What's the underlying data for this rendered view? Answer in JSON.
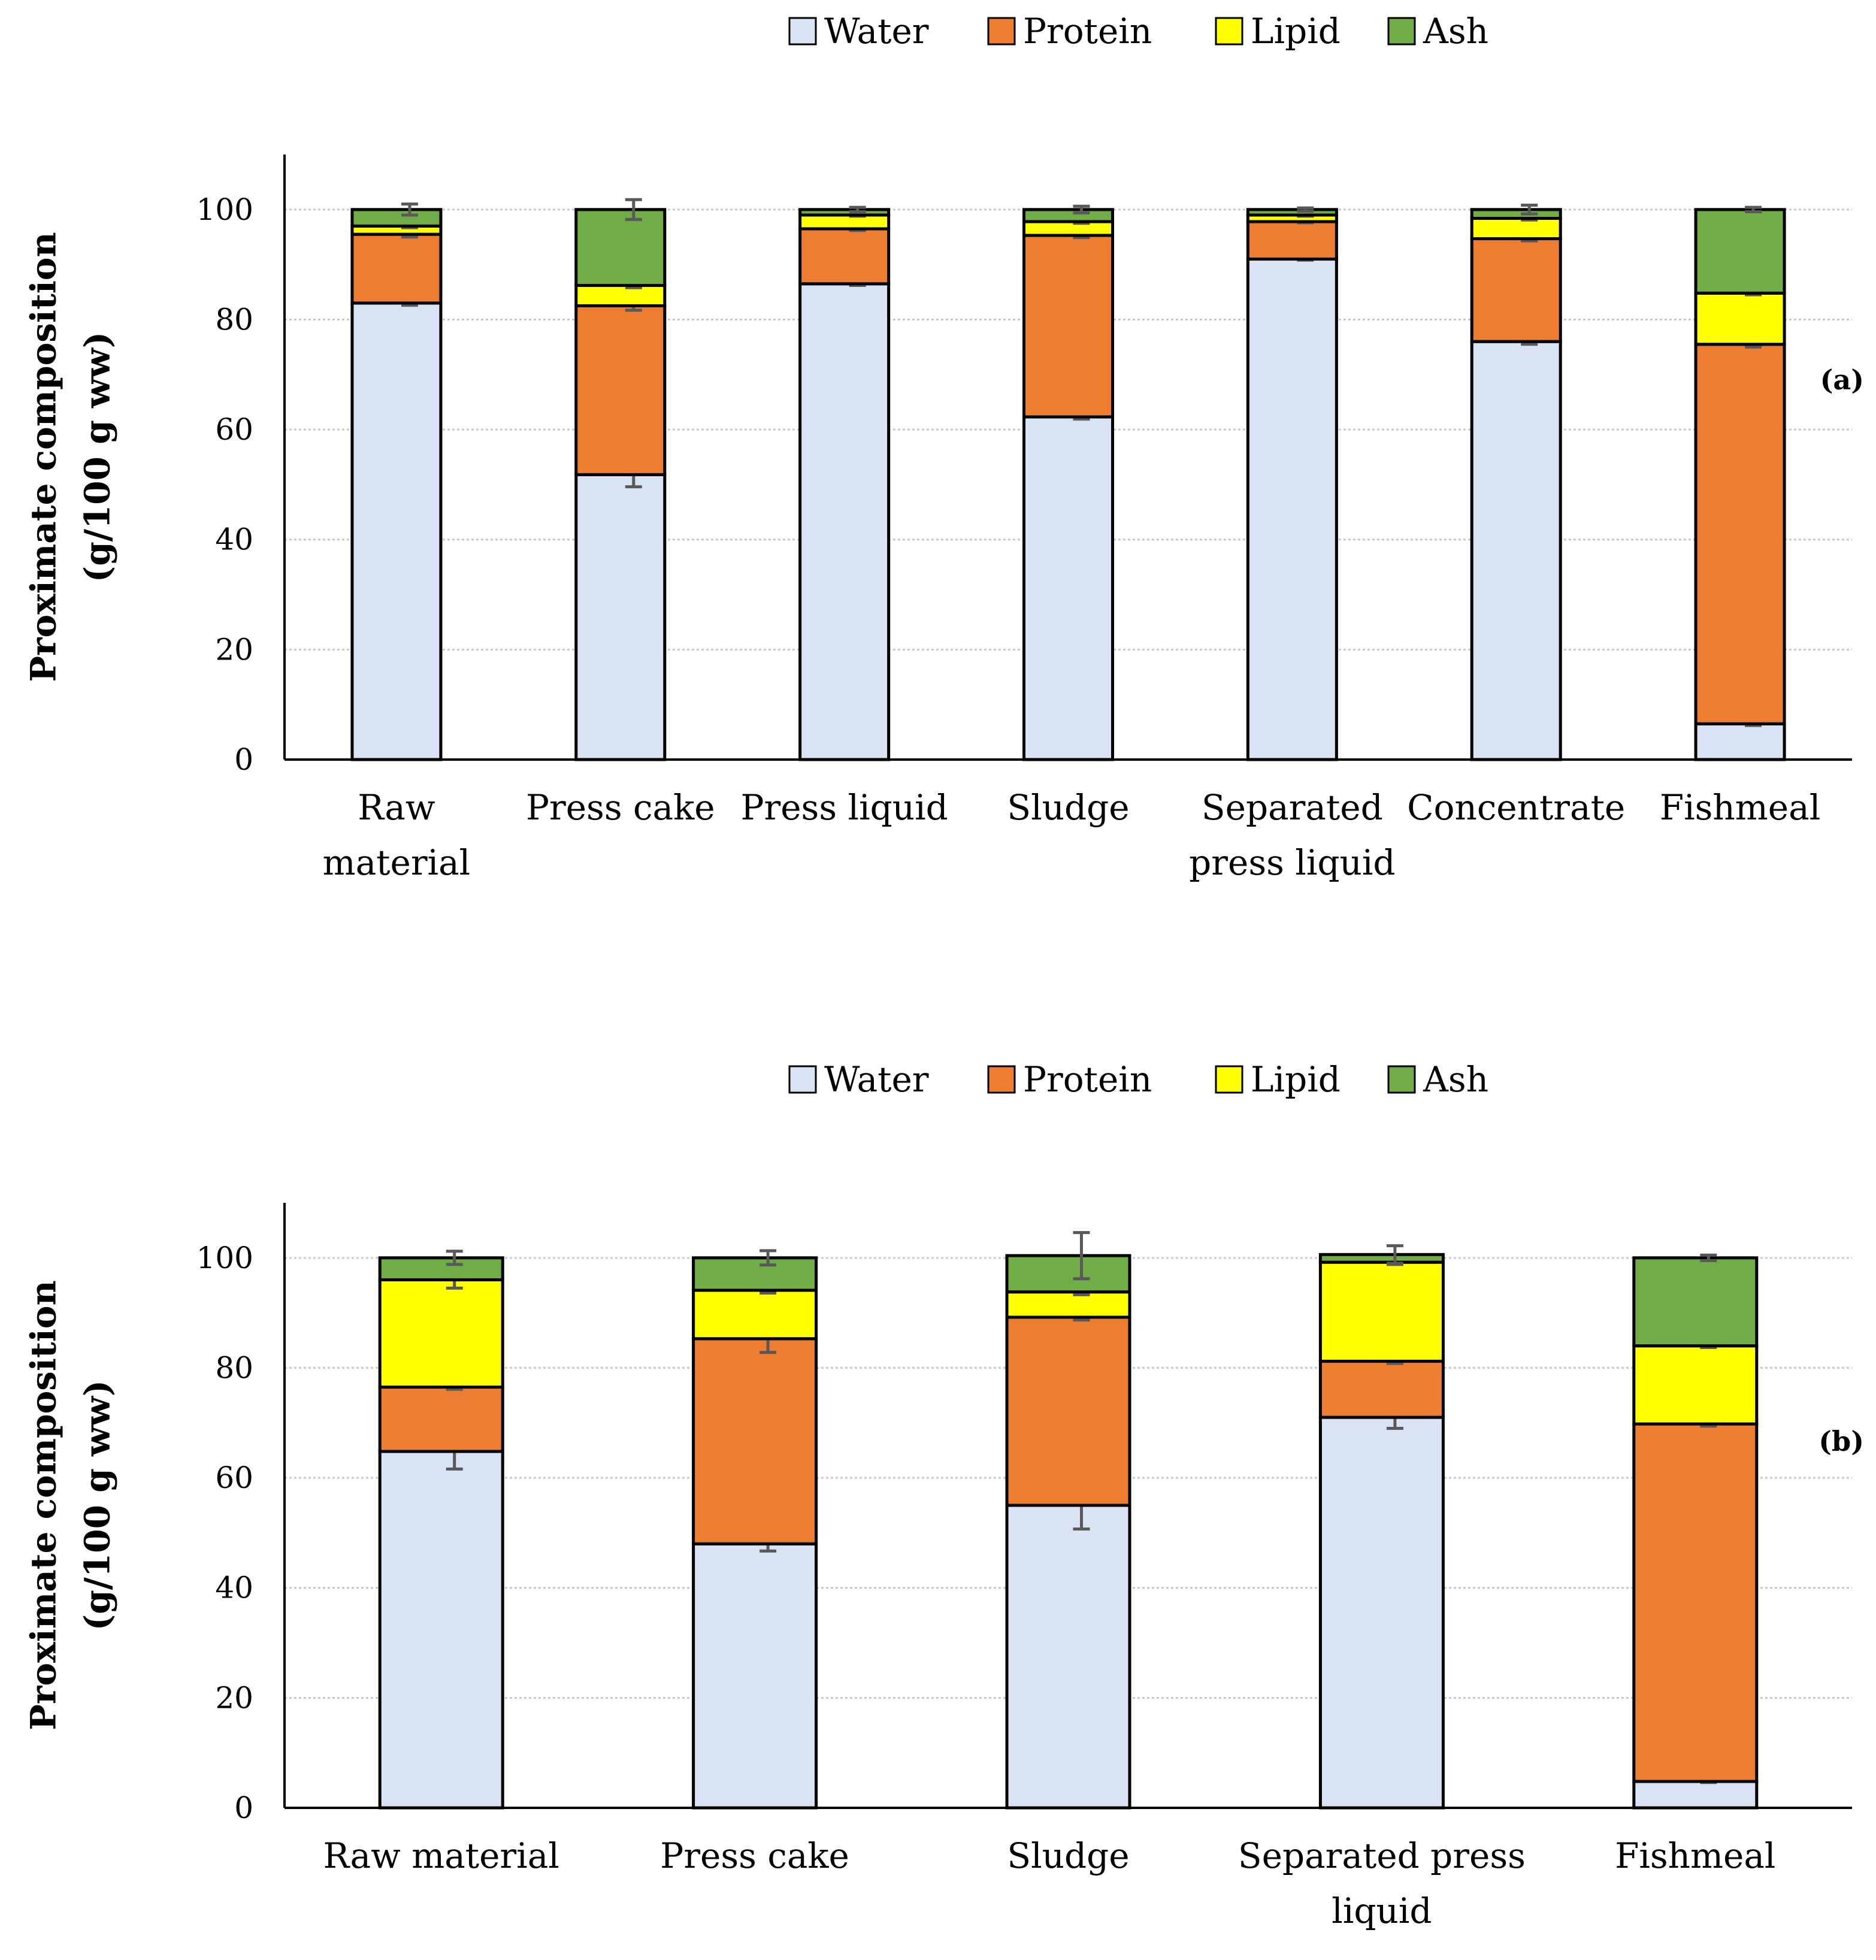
{
  "chart_data": [
    {
      "type": "bar",
      "stacked": true,
      "panel_label": "(a)",
      "ylabel_line1": "Proximate composition",
      "ylabel_line2": "(g/100 g ww)",
      "ylim": [
        0,
        110
      ],
      "yticks": [
        0,
        20,
        40,
        60,
        80,
        100
      ],
      "grid": true,
      "legend_position": "top-center",
      "categories": [
        [
          "Raw",
          "material"
        ],
        [
          "Press cake"
        ],
        [
          "Press liquid"
        ],
        [
          "Sludge"
        ],
        [
          "Separated",
          "press liquid"
        ],
        [
          "Concentrate"
        ],
        [
          "Fishmeal"
        ]
      ],
      "series": [
        {
          "name": "Water",
          "color": "#dae3f3",
          "values": [
            83.0,
            51.8,
            86.5,
            62.3,
            91.0,
            76.0,
            6.5
          ],
          "errors": [
            0.4,
            2.2,
            0.3,
            0.4,
            0.2,
            0.5,
            0.3
          ]
        },
        {
          "name": "Protein",
          "color": "#ed7d31",
          "values": [
            12.5,
            30.7,
            10.0,
            33.0,
            6.8,
            18.7,
            69.0
          ],
          "errors": [
            0.5,
            0.8,
            0.3,
            0.4,
            0.2,
            0.4,
            0.5
          ]
        },
        {
          "name": "Lipid",
          "color": "#ffff00",
          "values": [
            1.5,
            3.7,
            2.5,
            2.5,
            1.2,
            3.7,
            9.3
          ],
          "errors": [
            0.3,
            0.4,
            0.2,
            0.3,
            0.2,
            0.3,
            0.3
          ]
        },
        {
          "name": "Ash",
          "color": "#70ad47",
          "values": [
            3.0,
            13.8,
            1.0,
            2.2,
            1.0,
            1.6,
            15.2
          ],
          "errors": [
            1.0,
            1.8,
            0.4,
            0.6,
            0.3,
            0.8,
            0.4
          ]
        }
      ]
    },
    {
      "type": "bar",
      "stacked": true,
      "panel_label": "(b)",
      "ylabel_line1": "Proximate composition",
      "ylabel_line2": "(g/100 g ww)",
      "ylim": [
        0,
        110
      ],
      "yticks": [
        0,
        20,
        40,
        60,
        80,
        100
      ],
      "grid": true,
      "legend_position": "top-center",
      "categories": [
        [
          "Raw material"
        ],
        [
          "Press cake"
        ],
        [
          "Sludge"
        ],
        [
          "Separated press",
          "liquid"
        ],
        [
          "Fishmeal"
        ]
      ],
      "series": [
        {
          "name": "Water",
          "color": "#dae3f3",
          "values": [
            64.8,
            48.0,
            55.0,
            71.0,
            4.8
          ],
          "errors": [
            3.2,
            1.3,
            4.3,
            2.0,
            0.2
          ]
        },
        {
          "name": "Protein",
          "color": "#ed7d31",
          "values": [
            11.7,
            37.3,
            34.2,
            10.2,
            65.0
          ],
          "errors": [
            0.4,
            2.5,
            0.5,
            0.4,
            0.4
          ]
        },
        {
          "name": "Lipid",
          "color": "#ffff00",
          "values": [
            19.5,
            8.8,
            4.6,
            18.0,
            14.2
          ],
          "errors": [
            1.5,
            0.5,
            0.5,
            0.4,
            0.3
          ]
        },
        {
          "name": "Ash",
          "color": "#70ad47",
          "values": [
            4.0,
            5.9,
            6.6,
            1.4,
            16.0
          ],
          "errors": [
            1.2,
            1.3,
            4.2,
            1.6,
            0.5
          ]
        }
      ]
    }
  ]
}
